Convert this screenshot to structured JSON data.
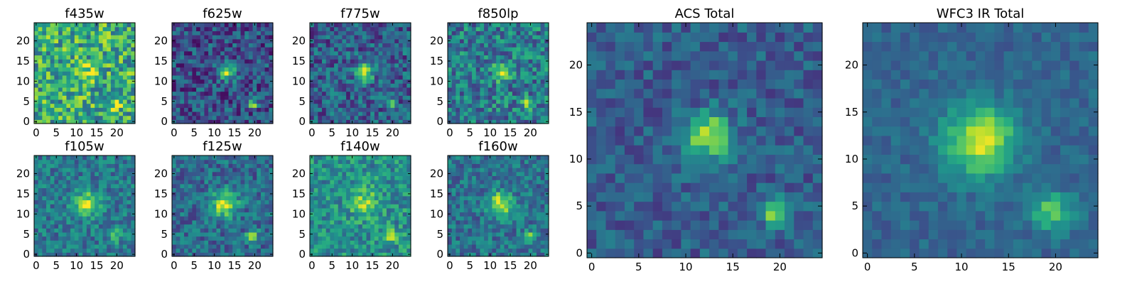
{
  "chart_data": [
    {
      "type": "heatmap",
      "title": "f435w",
      "xlim": [
        0,
        24
      ],
      "ylim": [
        0,
        24
      ],
      "x_ticks": [
        "0",
        "5",
        "10",
        "15",
        "20"
      ],
      "y_ticks": [
        "0",
        "5",
        "10",
        "15",
        "20"
      ],
      "grid": false,
      "colormap": "viridis",
      "sources": [
        {
          "x": 13,
          "y": 12,
          "amplitude": 0.3,
          "sigma": 1.6
        },
        {
          "x": 19.5,
          "y": 4.5,
          "amplitude": 0.25,
          "sigma": 1.0
        }
      ],
      "background": 0.62,
      "noise": 0.3
    },
    {
      "type": "heatmap",
      "title": "f625w",
      "xlim": [
        0,
        24
      ],
      "ylim": [
        0,
        24
      ],
      "x_ticks": [
        "0",
        "5",
        "10",
        "15",
        "20"
      ],
      "y_ticks": [
        "0",
        "5",
        "10",
        "15",
        "20"
      ],
      "grid": false,
      "colormap": "viridis",
      "sources": [
        {
          "x": 13,
          "y": 12.5,
          "amplitude": 0.6,
          "sigma": 1.6
        },
        {
          "x": 19.5,
          "y": 4.5,
          "amplitude": 0.55,
          "sigma": 0.9
        }
      ],
      "background": 0.25,
      "noise": 0.22
    },
    {
      "type": "heatmap",
      "title": "f775w",
      "xlim": [
        0,
        24
      ],
      "ylim": [
        0,
        24
      ],
      "x_ticks": [
        "0",
        "5",
        "10",
        "15",
        "20"
      ],
      "y_ticks": [
        "0",
        "5",
        "10",
        "15",
        "20"
      ],
      "grid": false,
      "colormap": "viridis",
      "sources": [
        {
          "x": 13,
          "y": 12.5,
          "amplitude": 0.62,
          "sigma": 1.6
        },
        {
          "x": 19.5,
          "y": 4.5,
          "amplitude": 0.55,
          "sigma": 0.9
        }
      ],
      "background": 0.3,
      "noise": 0.22
    },
    {
      "type": "heatmap",
      "title": "f850lp",
      "xlim": [
        0,
        24
      ],
      "ylim": [
        0,
        24
      ],
      "x_ticks": [
        "0",
        "5",
        "10",
        "15",
        "20"
      ],
      "y_ticks": [
        "0",
        "5",
        "10",
        "15",
        "20"
      ],
      "grid": false,
      "colormap": "viridis",
      "sources": [
        {
          "x": 13,
          "y": 12.5,
          "amplitude": 0.5,
          "sigma": 1.5
        },
        {
          "x": 19.5,
          "y": 4.5,
          "amplitude": 0.45,
          "sigma": 0.9
        }
      ],
      "background": 0.42,
      "noise": 0.25
    },
    {
      "type": "heatmap",
      "title": "f105w",
      "xlim": [
        0,
        24
      ],
      "ylim": [
        0,
        24
      ],
      "x_ticks": [
        "0",
        "5",
        "10",
        "15",
        "20"
      ],
      "y_ticks": [
        "0",
        "5",
        "10",
        "15",
        "20"
      ],
      "grid": false,
      "colormap": "viridis",
      "sources": [
        {
          "x": 12.5,
          "y": 12.5,
          "amplitude": 0.5,
          "sigma": 2.2
        },
        {
          "x": 19.5,
          "y": 4.5,
          "amplitude": 0.4,
          "sigma": 1.1
        }
      ],
      "background": 0.4,
      "noise": 0.18
    },
    {
      "type": "heatmap",
      "title": "f125w",
      "xlim": [
        0,
        24
      ],
      "ylim": [
        0,
        24
      ],
      "x_ticks": [
        "0",
        "5",
        "10",
        "15",
        "20"
      ],
      "y_ticks": [
        "0",
        "5",
        "10",
        "15",
        "20"
      ],
      "grid": false,
      "colormap": "viridis",
      "sources": [
        {
          "x": 12.5,
          "y": 12.5,
          "amplitude": 0.6,
          "sigma": 2.2
        },
        {
          "x": 19.5,
          "y": 4.5,
          "amplitude": 0.45,
          "sigma": 1.1
        }
      ],
      "background": 0.35,
      "noise": 0.18
    },
    {
      "type": "heatmap",
      "title": "f140w",
      "xlim": [
        0,
        24
      ],
      "ylim": [
        0,
        24
      ],
      "x_ticks": [
        "0",
        "5",
        "10",
        "15",
        "20"
      ],
      "y_ticks": [
        "0",
        "5",
        "10",
        "15",
        "20"
      ],
      "grid": false,
      "colormap": "viridis",
      "sources": [
        {
          "x": 13,
          "y": 13,
          "amplitude": 0.35,
          "sigma": 2.2
        },
        {
          "x": 19.5,
          "y": 4.5,
          "amplitude": 0.3,
          "sigma": 1.2
        }
      ],
      "background": 0.5,
      "noise": 0.2
    },
    {
      "type": "heatmap",
      "title": "f160w",
      "xlim": [
        0,
        24
      ],
      "ylim": [
        0,
        24
      ],
      "x_ticks": [
        "0",
        "5",
        "10",
        "15",
        "20"
      ],
      "y_ticks": [
        "0",
        "5",
        "10",
        "15",
        "20"
      ],
      "grid": false,
      "colormap": "viridis",
      "sources": [
        {
          "x": 12.5,
          "y": 12.5,
          "amplitude": 0.55,
          "sigma": 2.1
        },
        {
          "x": 19.5,
          "y": 4.5,
          "amplitude": 0.4,
          "sigma": 1.1
        }
      ],
      "background": 0.38,
      "noise": 0.18
    },
    {
      "type": "heatmap",
      "title": "ACS Total",
      "xlim": [
        0,
        24
      ],
      "ylim": [
        0,
        24
      ],
      "x_ticks": [
        "0",
        "5",
        "10",
        "15",
        "20"
      ],
      "y_ticks": [
        "0",
        "5",
        "10",
        "15",
        "20"
      ],
      "grid": false,
      "colormap": "viridis",
      "sources": [
        {
          "x": 12.5,
          "y": 12.5,
          "amplitude": 0.62,
          "sigma": 1.6
        },
        {
          "x": 19.5,
          "y": 4.5,
          "amplitude": 0.55,
          "sigma": 0.9
        }
      ],
      "background": 0.3,
      "noise": 0.14
    },
    {
      "type": "heatmap",
      "title": "WFC3 IR Total",
      "xlim": [
        0,
        24
      ],
      "ylim": [
        0,
        24
      ],
      "x_ticks": [
        "0",
        "5",
        "10",
        "15",
        "20"
      ],
      "y_ticks": [
        "0",
        "5",
        "10",
        "15",
        "20"
      ],
      "grid": false,
      "colormap": "viridis",
      "sources": [
        {
          "x": 12,
          "y": 12,
          "amplitude": 0.62,
          "sigma": 2.6
        },
        {
          "x": 19.5,
          "y": 4.5,
          "amplitude": 0.4,
          "sigma": 1.5
        }
      ],
      "background": 0.33,
      "noise": 0.09
    }
  ]
}
